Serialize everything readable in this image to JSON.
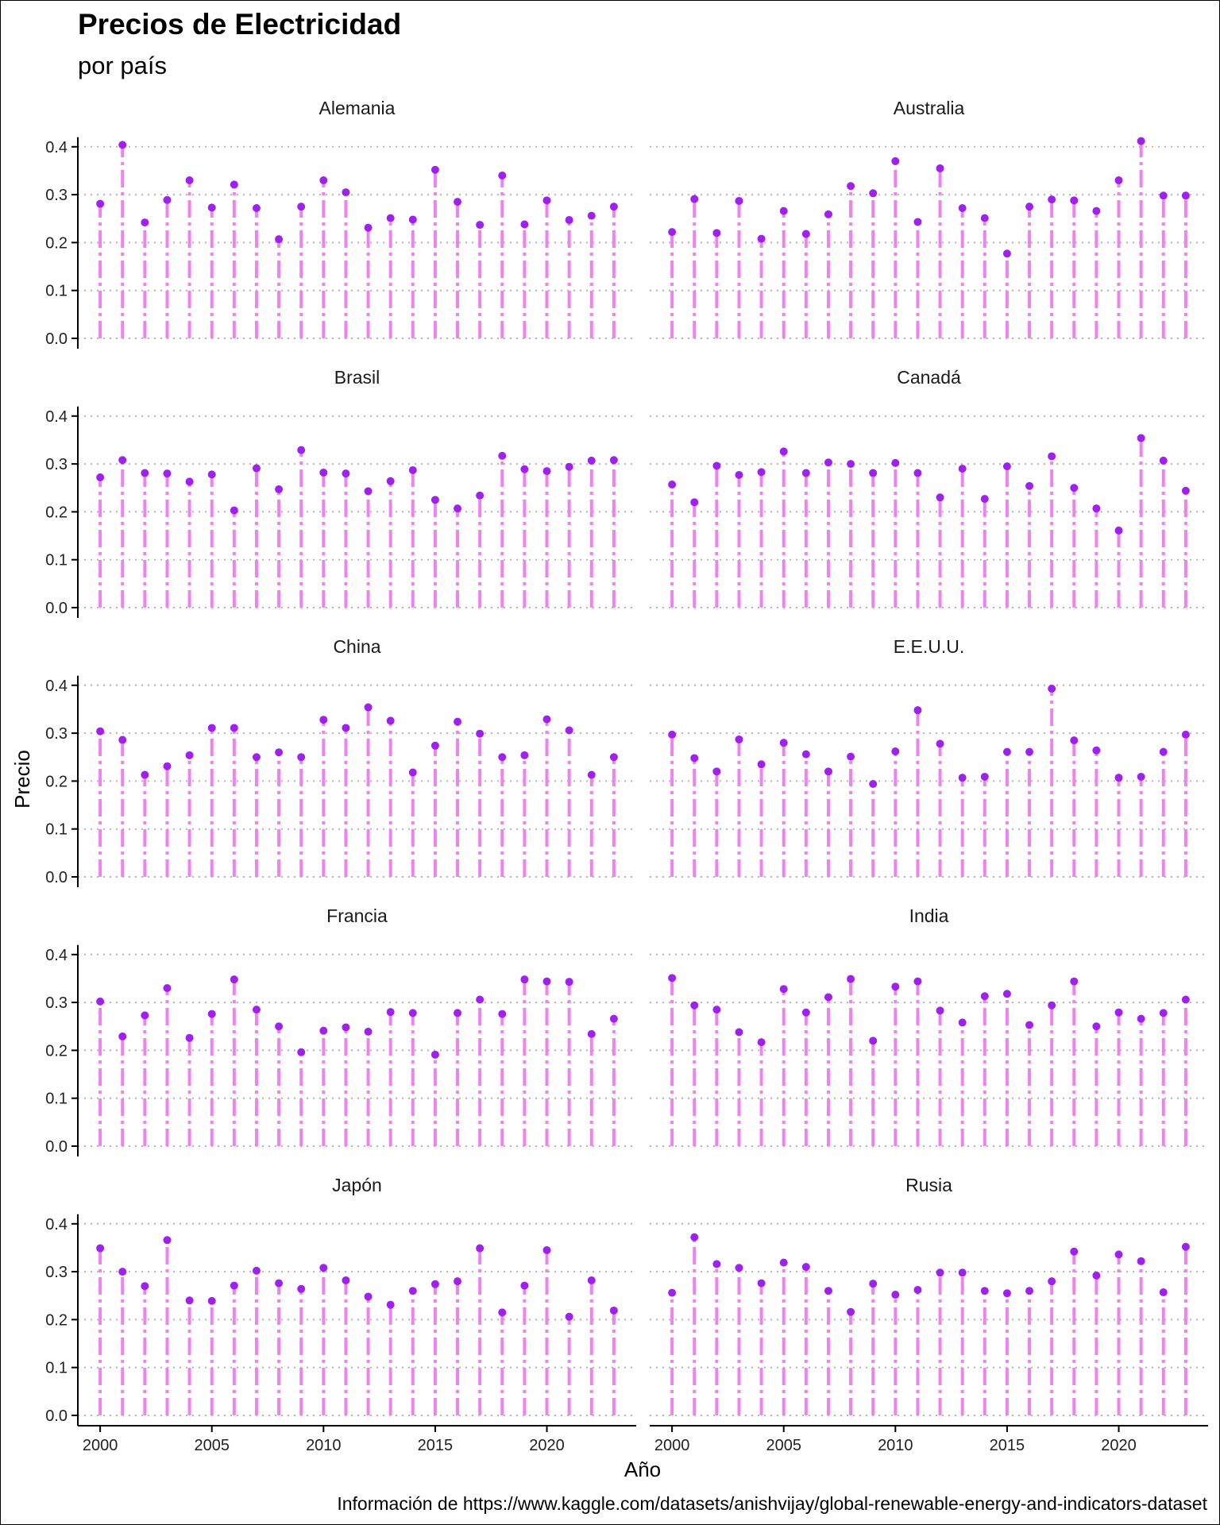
{
  "chart_data": {
    "type": "lollipop",
    "title": "Precios de Electricidad",
    "subtitle": "por país",
    "xlabel": "Año",
    "ylabel": "Precio",
    "caption": "Información de https://www.kaggle.com/datasets/anishvijay/global-renewable-energy-and-indicators-dataset",
    "xlim": [
      1999,
      2024
    ],
    "ylim": [
      0,
      0.42
    ],
    "x_ticks": [
      2000,
      2005,
      2010,
      2015,
      2020
    ],
    "y_ticks": [
      0.0,
      0.1,
      0.2,
      0.3,
      0.4
    ],
    "x": [
      2000,
      2001,
      2002,
      2003,
      2004,
      2005,
      2006,
      2007,
      2008,
      2009,
      2010,
      2011,
      2012,
      2013,
      2014,
      2015,
      2016,
      2017,
      2018,
      2019,
      2020,
      2021,
      2022,
      2023
    ],
    "grid": "horizontal-dotted",
    "colors": {
      "stem": "#ee82ee",
      "point": "#a020f0",
      "grid": "#b5b5b5"
    },
    "panels": [
      {
        "name": "Alemania",
        "values": [
          0.281,
          0.404,
          0.242,
          0.289,
          0.33,
          0.273,
          0.321,
          0.272,
          0.207,
          0.275,
          0.33,
          0.305,
          0.231,
          0.251,
          0.248,
          0.352,
          0.285,
          0.237,
          0.34,
          0.238,
          0.288,
          0.247,
          0.256,
          0.275
        ]
      },
      {
        "name": "Australia",
        "values": [
          0.222,
          0.291,
          0.22,
          0.287,
          0.208,
          0.266,
          0.218,
          0.259,
          0.318,
          0.303,
          0.37,
          0.243,
          0.355,
          0.272,
          0.251,
          0.177,
          0.275,
          0.29,
          0.288,
          0.266,
          0.33,
          0.412,
          0.298,
          0.298
        ]
      },
      {
        "name": "Brasil",
        "values": [
          0.272,
          0.308,
          0.281,
          0.28,
          0.263,
          0.278,
          0.203,
          0.291,
          0.247,
          0.329,
          0.282,
          0.28,
          0.243,
          0.264,
          0.287,
          0.225,
          0.207,
          0.234,
          0.317,
          0.289,
          0.285,
          0.294,
          0.307,
          0.308
        ]
      },
      {
        "name": "Canadá",
        "values": [
          0.257,
          0.22,
          0.296,
          0.277,
          0.283,
          0.326,
          0.281,
          0.303,
          0.3,
          0.281,
          0.302,
          0.281,
          0.23,
          0.29,
          0.227,
          0.295,
          0.254,
          0.316,
          0.25,
          0.207,
          0.161,
          0.354,
          0.307,
          0.244
        ]
      },
      {
        "name": "China",
        "values": [
          0.304,
          0.286,
          0.213,
          0.231,
          0.254,
          0.311,
          0.311,
          0.25,
          0.26,
          0.25,
          0.328,
          0.311,
          0.354,
          0.326,
          0.218,
          0.274,
          0.324,
          0.299,
          0.25,
          0.254,
          0.329,
          0.306,
          0.213,
          0.25
        ]
      },
      {
        "name": "E.E.U.U.",
        "values": [
          0.297,
          0.248,
          0.22,
          0.287,
          0.235,
          0.28,
          0.256,
          0.22,
          0.251,
          0.194,
          0.262,
          0.348,
          0.278,
          0.207,
          0.209,
          0.261,
          0.261,
          0.393,
          0.285,
          0.264,
          0.207,
          0.209,
          0.261,
          0.297
        ]
      },
      {
        "name": "Francia",
        "values": [
          0.302,
          0.229,
          0.273,
          0.33,
          0.226,
          0.276,
          0.348,
          0.285,
          0.25,
          0.196,
          0.241,
          0.248,
          0.239,
          0.28,
          0.278,
          0.191,
          0.278,
          0.306,
          0.276,
          0.348,
          0.344,
          0.343,
          0.234,
          0.266
        ]
      },
      {
        "name": "India",
        "values": [
          0.351,
          0.294,
          0.285,
          0.238,
          0.217,
          0.328,
          0.279,
          0.311,
          0.349,
          0.22,
          0.333,
          0.344,
          0.283,
          0.258,
          0.313,
          0.318,
          0.253,
          0.294,
          0.344,
          0.25,
          0.279,
          0.266,
          0.278,
          0.306
        ]
      },
      {
        "name": "Japón",
        "values": [
          0.349,
          0.3,
          0.27,
          0.366,
          0.24,
          0.239,
          0.271,
          0.302,
          0.276,
          0.264,
          0.308,
          0.282,
          0.248,
          0.231,
          0.26,
          0.274,
          0.28,
          0.349,
          0.215,
          0.271,
          0.345,
          0.206,
          0.282,
          0.219
        ]
      },
      {
        "name": "Rusia",
        "values": [
          0.256,
          0.372,
          0.316,
          0.308,
          0.276,
          0.319,
          0.31,
          0.26,
          0.216,
          0.275,
          0.252,
          0.262,
          0.298,
          0.298,
          0.26,
          0.255,
          0.26,
          0.28,
          0.342,
          0.292,
          0.336,
          0.322,
          0.257,
          0.352
        ]
      }
    ]
  }
}
